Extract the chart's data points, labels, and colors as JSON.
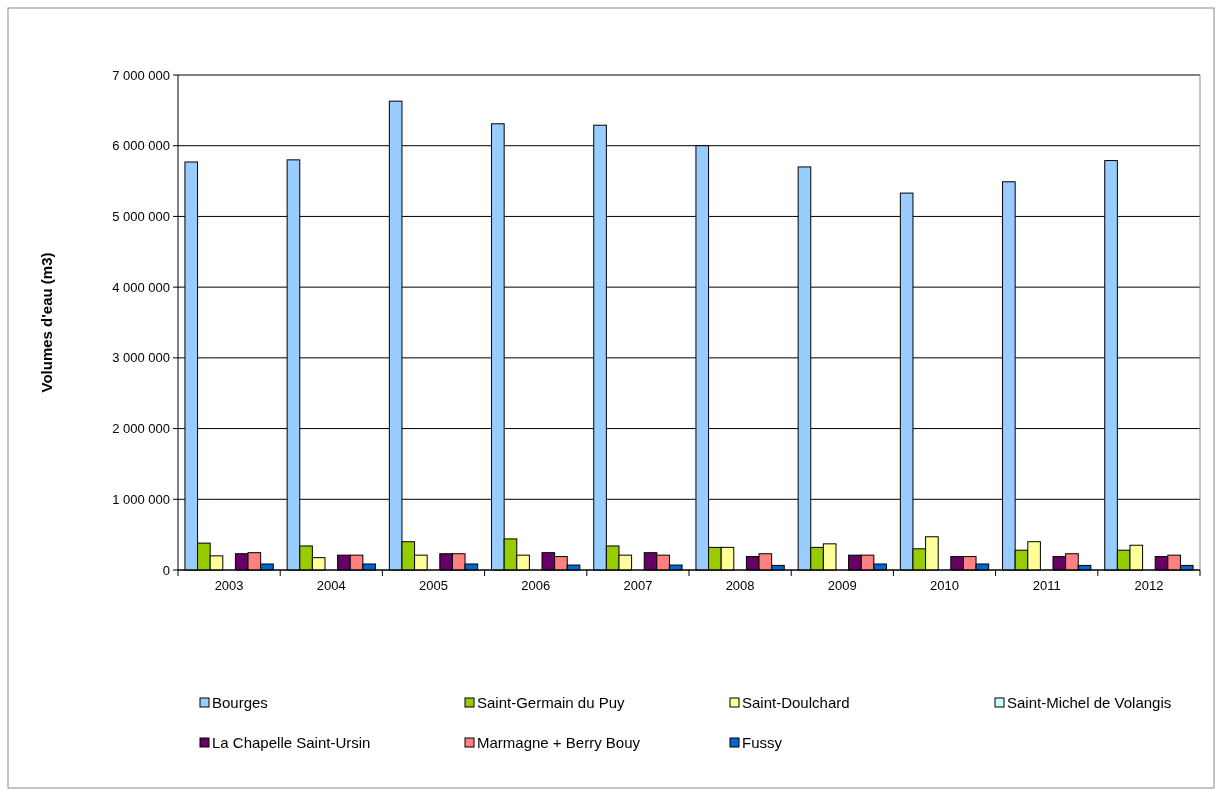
{
  "chart_data": {
    "type": "bar",
    "ylabel": "Volumes d'eau (m3)",
    "categories": [
      "2003",
      "2004",
      "2005",
      "2006",
      "2007",
      "2008",
      "2009",
      "2010",
      "2011",
      "2012"
    ],
    "series": [
      {
        "name": "Bourges",
        "color": "#99ccff",
        "values": [
          5770000,
          5800000,
          6630000,
          6310000,
          6290000,
          6000000,
          5700000,
          5330000,
          5490000,
          5790000
        ]
      },
      {
        "name": "Saint-Germain du Puy",
        "color": "#99cc00",
        "values": [
          380000,
          340000,
          400000,
          440000,
          340000,
          320000,
          320000,
          300000,
          280000,
          280000
        ]
      },
      {
        "name": "Saint-Doulchard",
        "color": "#ffff99",
        "values": [
          200000,
          175000,
          210000,
          210000,
          210000,
          320000,
          370000,
          470000,
          400000,
          350000
        ]
      },
      {
        "name": "Saint-Michel de Volangis",
        "color": "#ccffff",
        "values": [
          0,
          0,
          0,
          0,
          0,
          0,
          0,
          0,
          0,
          0
        ]
      },
      {
        "name": "La Chapelle Saint-Ursin",
        "color": "#660066",
        "values": [
          230000,
          210000,
          230000,
          245000,
          245000,
          190000,
          210000,
          190000,
          190000,
          190000
        ]
      },
      {
        "name": "Marmagne + Berry Bouy",
        "color": "#ff8080",
        "values": [
          245000,
          210000,
          230000,
          190000,
          210000,
          230000,
          210000,
          190000,
          230000,
          210000
        ]
      },
      {
        "name": "Fussy",
        "color": "#0066cc",
        "values": [
          85000,
          85000,
          85000,
          70000,
          70000,
          65000,
          85000,
          85000,
          65000,
          65000
        ]
      }
    ],
    "ylim": [
      0,
      7000000
    ],
    "yticks": [
      {
        "value": 0,
        "label": "0"
      },
      {
        "value": 1000000,
        "label": "1 000 000"
      },
      {
        "value": 2000000,
        "label": "2 000 000"
      },
      {
        "value": 3000000,
        "label": "3 000 000"
      },
      {
        "value": 4000000,
        "label": "4 000 000"
      },
      {
        "value": 5000000,
        "label": "5 000 000"
      },
      {
        "value": 6000000,
        "label": "6 000 000"
      },
      {
        "value": 7000000,
        "label": "7 000 000"
      }
    ],
    "grid": "y",
    "legend": "bottom"
  }
}
